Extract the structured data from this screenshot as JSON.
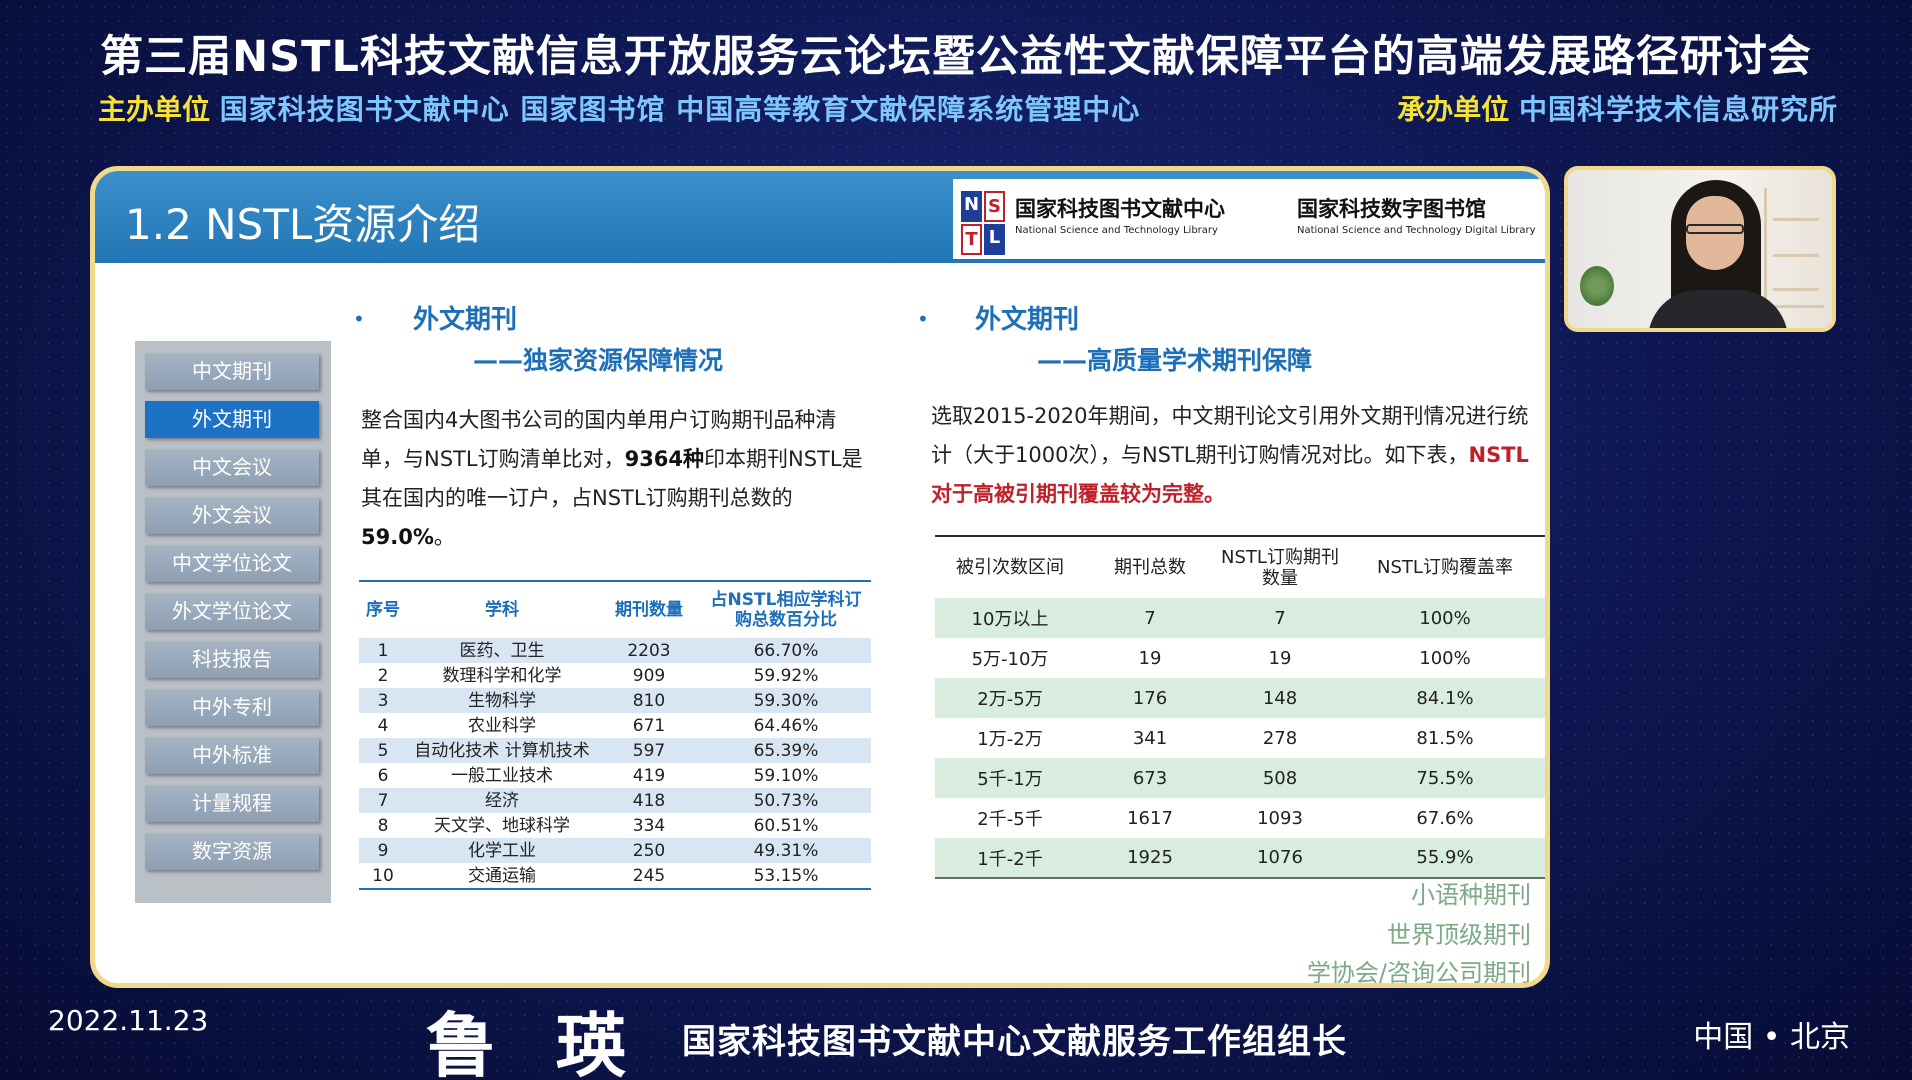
{
  "conference": {
    "title": "第三届NSTL科技文献信息开放服务云论坛暨公益性文献保障平台的高端发展路径研讨会",
    "host_label": "主办单位",
    "host_names": "国家科技图书文献中心 国家图书馆 中国高等教育文献保障系统管理中心",
    "organizer_label": "承办单位",
    "organizer_names": "中国科学技术信息研究所"
  },
  "slide": {
    "title": "1.2 NSTL资源介绍",
    "logo": {
      "mark_letters": [
        "N",
        "S",
        "T",
        "L"
      ],
      "cn_1": "国家科技图书文献中心",
      "en_1": "National Science and Technology Library",
      "cn_2": "国家科技数字图书馆",
      "en_2": "National Science and Technology Digital Library"
    },
    "sidebar": [
      {
        "label": "中文期刊",
        "active": false
      },
      {
        "label": "外文期刊",
        "active": true
      },
      {
        "label": "中文会议",
        "active": false
      },
      {
        "label": "外文会议",
        "active": false
      },
      {
        "label": "中文学位论文",
        "active": false
      },
      {
        "label": "外文学位论文",
        "active": false
      },
      {
        "label": "科技报告",
        "active": false
      },
      {
        "label": "中外专利",
        "active": false
      },
      {
        "label": "中外标准",
        "active": false
      },
      {
        "label": "计量规程",
        "active": false
      },
      {
        "label": "数字资源",
        "active": false
      }
    ],
    "left": {
      "bullet": "•",
      "heading": "外文期刊",
      "subheading": "——独家资源保障情况",
      "para_1": "整合国内4大图书公司的国内单用户订购期刊品种清单，与NSTL订购清单比对，",
      "para_bold_1": "9364种",
      "para_2": "印本期刊NSTL是其在国内的唯一订户，占NSTL订购期刊总数的",
      "para_bold_2": "59.0%",
      "para_3": "。",
      "table": {
        "headers": [
          "序号",
          "学科",
          "期刊数量",
          "占NSTL相应学科订购总数百分比"
        ],
        "rows": [
          [
            "1",
            "医药、卫生",
            "2203",
            "66.70%"
          ],
          [
            "2",
            "数理科学和化学",
            "909",
            "59.92%"
          ],
          [
            "3",
            "生物科学",
            "810",
            "59.30%"
          ],
          [
            "4",
            "农业科学",
            "671",
            "64.46%"
          ],
          [
            "5",
            "自动化技术 计算机技术",
            "597",
            "65.39%"
          ],
          [
            "6",
            "一般工业技术",
            "419",
            "59.10%"
          ],
          [
            "7",
            "经济",
            "418",
            "50.73%"
          ],
          [
            "8",
            "天文学、地球科学",
            "334",
            "60.51%"
          ],
          [
            "9",
            "化学工业",
            "250",
            "49.31%"
          ],
          [
            "10",
            "交通运输",
            "245",
            "53.15%"
          ]
        ]
      }
    },
    "right": {
      "bullet": "•",
      "heading": "外文期刊",
      "subheading": "——高质量学术期刊保障",
      "para_1": "选取2015-2020年期间，中文期刊论文引用外文期刊情况进行统计（大于1000次），与NSTL期刊订购情况对比。如下表，",
      "para_red": "NSTL对于高被引期刊覆盖较为完整。",
      "table": {
        "headers": [
          "被引次数区间",
          "期刊总数",
          "NSTL订购期刊数量",
          "NSTL订购覆盖率"
        ],
        "rows": [
          [
            "10万以上",
            "7",
            "7",
            "100%"
          ],
          [
            "5万-10万",
            "19",
            "19",
            "100%"
          ],
          [
            "2万-5万",
            "176",
            "148",
            "84.1%"
          ],
          [
            "1万-2万",
            "341",
            "278",
            "81.5%"
          ],
          [
            "5千-1万",
            "673",
            "508",
            "75.5%"
          ],
          [
            "2千-5千",
            "1617",
            "1093",
            "67.6%"
          ],
          [
            "1千-2千",
            "1925",
            "1076",
            "55.9%"
          ]
        ]
      },
      "links": [
        "小语种期刊",
        "世界顶级期刊",
        "学协会/咨询公司期刊"
      ]
    }
  },
  "footer": {
    "date": "2022.11.23",
    "speaker": "鲁瑛",
    "speaker_title": "国家科技图书文献中心文献服务工作组组长",
    "location": "中国 • 北京"
  },
  "colors": {
    "background": "#0d1650",
    "slide_header": "#2276b5",
    "accent_blue": "#1c6fb8",
    "accent_red": "#c0202a",
    "host_label": "#f4e23a",
    "frame": "#f0d98a"
  }
}
